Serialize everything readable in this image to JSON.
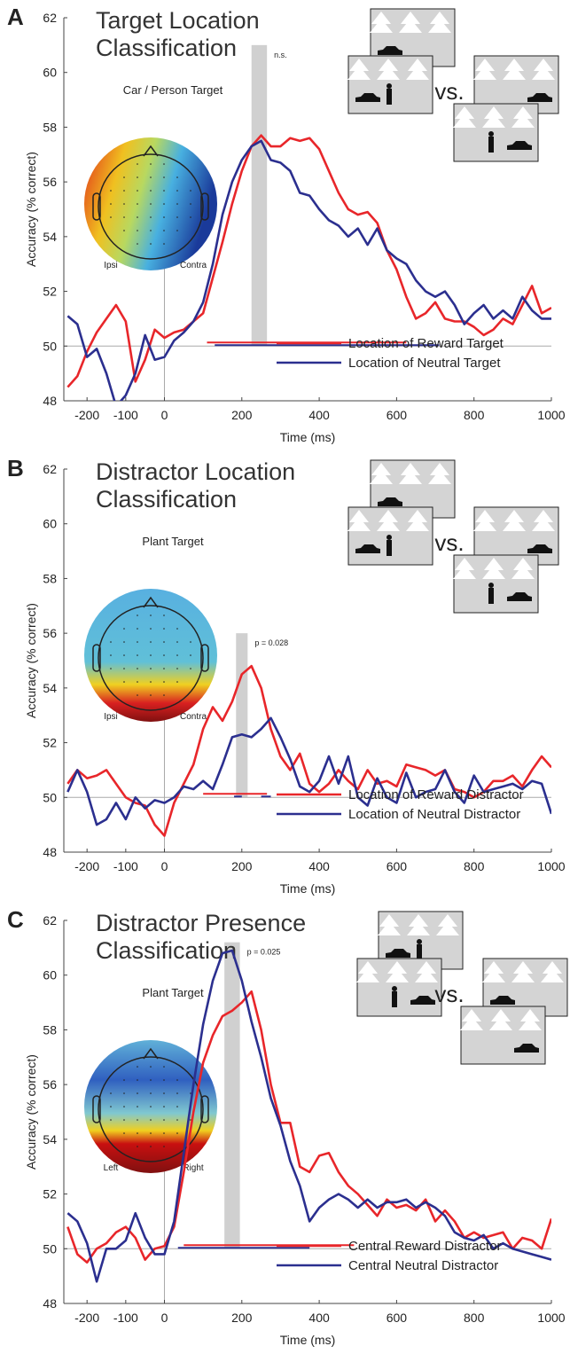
{
  "chart_data": [
    {
      "type": "line",
      "panel_label": "A",
      "title": "Target Location Classification",
      "subtitle": "Car / Person Target",
      "x_label": "Time (ms)",
      "y_label": "Accuracy (% correct)",
      "inset_labels": [
        "Ipsi",
        "Contra"
      ],
      "vs_label": "vs.",
      "annotation": "n.s.",
      "highlight_x": [
        225,
        265
      ],
      "highlight_top": 61,
      "chance": 50,
      "onset": 0,
      "xlim": [
        -260,
        1000
      ],
      "xticks": [
        -200,
        -100,
        0,
        200,
        400,
        600,
        800,
        1000
      ],
      "ylim": [
        48,
        62
      ],
      "yticks": [
        48,
        50,
        52,
        54,
        56,
        58,
        60,
        62
      ],
      "legend": "lower right",
      "x": [
        -250,
        -225,
        -200,
        -175,
        -150,
        -125,
        -100,
        -75,
        -50,
        -25,
        0,
        25,
        50,
        75,
        100,
        125,
        150,
        175,
        200,
        225,
        250,
        275,
        300,
        325,
        350,
        375,
        400,
        425,
        450,
        475,
        500,
        525,
        550,
        575,
        600,
        625,
        650,
        675,
        700,
        725,
        750,
        775,
        800,
        825,
        850,
        875,
        900,
        925,
        950,
        975,
        1000
      ],
      "series": [
        {
          "name": "Location of Reward Target",
          "color": "#e8262a",
          "significant": [
            [
              110,
              625
            ]
          ],
          "values": [
            48.5,
            48.9,
            49.8,
            50.5,
            51.0,
            51.5,
            50.9,
            48.7,
            49.5,
            50.6,
            50.3,
            50.5,
            50.6,
            50.9,
            51.2,
            52.5,
            53.8,
            55.2,
            56.4,
            57.3,
            57.7,
            57.3,
            57.3,
            57.6,
            57.5,
            57.6,
            57.2,
            56.4,
            55.6,
            55.0,
            54.8,
            54.9,
            54.5,
            53.5,
            52.8,
            51.8,
            51.0,
            51.2,
            51.6,
            51.0,
            50.9,
            50.9,
            50.7,
            50.4,
            50.6,
            51.0,
            50.8,
            51.5,
            52.2,
            51.2,
            51.4
          ]
        },
        {
          "name": "Location of Neutral Target",
          "color": "#2b2f8f",
          "significant": [
            [
              130,
              710
            ]
          ],
          "values": [
            51.1,
            50.8,
            49.6,
            49.9,
            49.0,
            47.8,
            48.2,
            49.0,
            50.4,
            49.5,
            49.6,
            50.2,
            50.5,
            50.9,
            51.6,
            53.0,
            54.8,
            56.0,
            56.8,
            57.3,
            57.5,
            56.8,
            56.7,
            56.4,
            55.6,
            55.5,
            55.0,
            54.6,
            54.4,
            54.0,
            54.3,
            53.7,
            54.3,
            53.5,
            53.2,
            53.0,
            52.4,
            52.0,
            51.8,
            52.0,
            51.5,
            50.8,
            51.2,
            51.5,
            51.0,
            51.3,
            51.0,
            51.8,
            51.3,
            51.0,
            51.0
          ]
        }
      ]
    },
    {
      "type": "line",
      "panel_label": "B",
      "title": "Distractor Location Classification",
      "subtitle": "Plant Target",
      "x_label": "Time (ms)",
      "y_label": "Accuracy (% correct)",
      "inset_labels": [
        "Ipsi",
        "Contra"
      ],
      "vs_label": "vs.",
      "annotation": "p = 0.028",
      "highlight_x": [
        185,
        215
      ],
      "highlight_top": 56,
      "chance": 50,
      "onset": 0,
      "xlim": [
        -260,
        1000
      ],
      "xticks": [
        -200,
        -100,
        0,
        200,
        400,
        600,
        800,
        1000
      ],
      "ylim": [
        48,
        62
      ],
      "yticks": [
        48,
        50,
        52,
        54,
        56,
        58,
        60,
        62
      ],
      "legend": "lower right",
      "x": [
        -250,
        -225,
        -200,
        -175,
        -150,
        -125,
        -100,
        -75,
        -50,
        -25,
        0,
        25,
        50,
        75,
        100,
        125,
        150,
        175,
        200,
        225,
        250,
        275,
        300,
        325,
        350,
        375,
        400,
        425,
        450,
        475,
        500,
        525,
        550,
        575,
        600,
        625,
        650,
        675,
        700,
        725,
        750,
        775,
        800,
        825,
        850,
        875,
        900,
        925,
        950,
        975,
        1000
      ],
      "series": [
        {
          "name": "Location of Reward Distractor",
          "color": "#e8262a",
          "significant": [
            [
              100,
              265
            ]
          ],
          "values": [
            50.5,
            51.0,
            50.7,
            50.8,
            51.0,
            50.5,
            50.0,
            49.8,
            49.7,
            49.0,
            48.6,
            49.8,
            50.5,
            51.2,
            52.5,
            53.3,
            52.8,
            53.5,
            54.5,
            54.8,
            54.0,
            52.5,
            51.5,
            51.0,
            51.6,
            50.5,
            50.2,
            50.5,
            51.0,
            50.6,
            50.3,
            51.0,
            50.5,
            50.6,
            50.4,
            51.2,
            51.1,
            51.0,
            50.8,
            51.0,
            50.3,
            50.2,
            50.0,
            50.2,
            50.6,
            50.6,
            50.8,
            50.4,
            51.0,
            51.5,
            51.1
          ]
        },
        {
          "name": "Location of Neutral Distractor",
          "color": "#2b2f8f",
          "significant": [
            [
              180,
              200
            ],
            [
              250,
              275
            ]
          ],
          "values": [
            50.2,
            51.0,
            50.2,
            49.0,
            49.2,
            49.8,
            49.2,
            50.0,
            49.6,
            49.9,
            49.8,
            50.0,
            50.4,
            50.3,
            50.6,
            50.3,
            51.2,
            52.2,
            52.3,
            52.2,
            52.5,
            52.9,
            52.2,
            51.4,
            50.4,
            50.2,
            50.6,
            51.5,
            50.5,
            51.5,
            50.0,
            49.7,
            50.7,
            50.0,
            49.8,
            50.9,
            50.0,
            50.2,
            50.3,
            51.0,
            50.2,
            49.8,
            50.8,
            50.2,
            50.3,
            50.4,
            50.5,
            50.3,
            50.6,
            50.5,
            49.4
          ]
        }
      ]
    },
    {
      "type": "line",
      "panel_label": "C",
      "title": "Distractor Presence Classification",
      "subtitle": "Plant Target",
      "x_label": "Time (ms)",
      "y_label": "Accuracy (% correct)",
      "inset_labels": [
        "Left",
        "Right"
      ],
      "vs_label": "vs.",
      "annotation": "p = 0.025",
      "highlight_x": [
        155,
        195
      ],
      "highlight_top": 61.2,
      "chance": 50,
      "onset": 0,
      "xlim": [
        -260,
        1000
      ],
      "xticks": [
        -200,
        -100,
        0,
        200,
        400,
        600,
        800,
        1000
      ],
      "ylim": [
        48,
        62
      ],
      "yticks": [
        48,
        50,
        52,
        54,
        56,
        58,
        60,
        62
      ],
      "legend": "lower right",
      "x": [
        -250,
        -225,
        -200,
        -175,
        -150,
        -125,
        -100,
        -75,
        -50,
        -25,
        0,
        25,
        50,
        75,
        100,
        125,
        150,
        175,
        200,
        225,
        250,
        275,
        300,
        325,
        350,
        375,
        400,
        425,
        450,
        475,
        500,
        525,
        550,
        575,
        600,
        625,
        650,
        675,
        700,
        725,
        750,
        775,
        800,
        825,
        850,
        875,
        900,
        925,
        950,
        975,
        1000
      ],
      "series": [
        {
          "name": "Central Reward Distractor",
          "color": "#e8262a",
          "significant": [
            [
              50,
              490
            ]
          ],
          "values": [
            50.8,
            49.8,
            49.5,
            50.0,
            50.2,
            50.6,
            50.8,
            50.4,
            49.6,
            50.0,
            50.1,
            50.8,
            52.8,
            55.0,
            56.8,
            57.8,
            58.5,
            58.7,
            59.0,
            59.4,
            58.0,
            56.0,
            54.6,
            54.6,
            53.0,
            52.8,
            53.4,
            53.5,
            52.8,
            52.3,
            52.0,
            51.6,
            51.2,
            51.8,
            51.5,
            51.6,
            51.4,
            51.8,
            51.0,
            51.4,
            51.0,
            50.4,
            50.6,
            50.4,
            50.5,
            50.6,
            50.0,
            50.4,
            50.3,
            50.0,
            51.1
          ]
        },
        {
          "name": "Central Neutral Distractor",
          "color": "#2b2f8f",
          "significant": [
            [
              35,
              375
            ]
          ],
          "values": [
            51.3,
            51.0,
            50.2,
            48.8,
            50.0,
            50.0,
            50.3,
            51.3,
            50.4,
            49.8,
            49.8,
            51.0,
            53.5,
            56.0,
            58.2,
            59.8,
            60.8,
            60.9,
            59.8,
            58.3,
            57.0,
            55.5,
            54.5,
            53.2,
            52.3,
            51.0,
            51.5,
            51.8,
            52.0,
            51.8,
            51.5,
            51.8,
            51.5,
            51.7,
            51.7,
            51.8,
            51.5,
            51.7,
            51.5,
            51.2,
            50.6,
            50.4,
            50.3,
            50.5,
            50.0,
            50.2,
            50.0,
            49.9,
            49.8,
            49.7,
            49.6
          ]
        }
      ]
    }
  ]
}
